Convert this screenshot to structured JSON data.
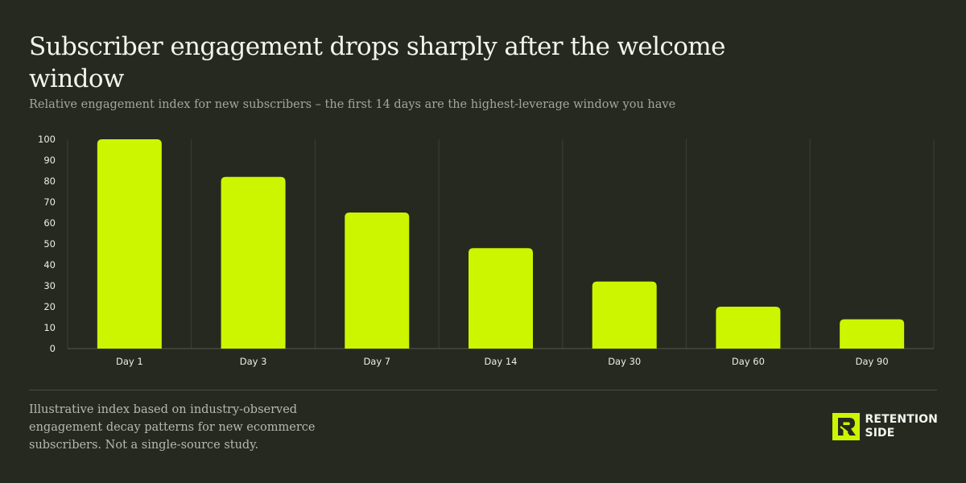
{
  "header": {
    "title": "Subscriber engagement drops sharply after the welcome window",
    "subtitle": "Relative engagement index for new subscribers – the first 14 days are the highest-leverage window you have"
  },
  "footer": {
    "note": "Illustrative index based on industry-observed engagement decay patterns for new ecommerce subscribers. Not a single-source study."
  },
  "brand": {
    "line1": "RETENTION",
    "line2": "SIDE",
    "mark_text": "R",
    "accent_color": "#ccf500"
  },
  "colors": {
    "background": "#262920",
    "bar": "#ccf500",
    "grid": "#3d4037"
  },
  "chart_data": {
    "type": "bar",
    "title": "Subscriber engagement drops sharply after the welcome window",
    "subtitle": "Relative engagement index for new subscribers – the first 14 days are the highest-leverage window you have",
    "xlabel": "",
    "ylabel": "",
    "categories": [
      "Day 1",
      "Day 3",
      "Day 7",
      "Day 14",
      "Day 30",
      "Day 60",
      "Day 90"
    ],
    "values": [
      100,
      82,
      65,
      48,
      32,
      20,
      14
    ],
    "ylim": [
      0,
      100
    ],
    "yticks": [
      0,
      10,
      20,
      30,
      40,
      50,
      60,
      70,
      80,
      90,
      100
    ],
    "grid": "vertical",
    "legend": "none"
  }
}
